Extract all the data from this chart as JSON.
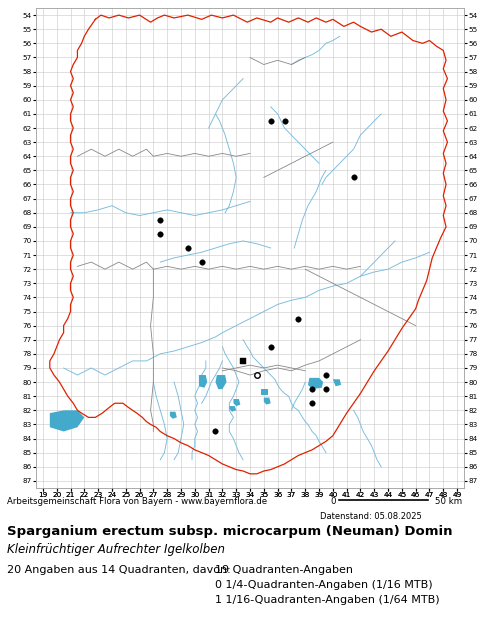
{
  "title": "Sparganium erectum subsp. microcarpum (Neuman) Domin",
  "subtitle": "Kleinfrüchtiger Aufrechter Igelkolben",
  "footer_left": "Arbeitsgemeinschaft Flora von Bayern - www.bayernflora.de",
  "date_text": "Datenstand: 05.08.2025",
  "stats_line1": "20 Angaben aus 14 Quadranten, davon:",
  "stats_right1": "19 Quadranten-Angaben",
  "stats_right2": "0 1/4-Quadranten-Angaben (1/16 MTB)",
  "stats_right3": "1 1/16-Quadranten-Angaben (1/64 MTB)",
  "x_min": 19,
  "x_max": 49,
  "y_min": 54,
  "y_max": 87,
  "grid_color": "#c8c8c8",
  "background_color": "#ffffff",
  "dots_filled": [
    [
      27,
      68
    ],
    [
      27,
      69
    ],
    [
      29,
      70
    ],
    [
      30,
      71
    ],
    [
      35,
      61
    ],
    [
      36,
      61
    ],
    [
      37,
      75
    ],
    [
      35,
      77
    ],
    [
      38,
      80
    ],
    [
      39,
      79
    ],
    [
      39,
      80
    ],
    [
      38,
      81
    ],
    [
      31,
      83
    ],
    [
      41,
      65
    ]
  ],
  "dots_square": [
    [
      33,
      78
    ]
  ],
  "dots_open": [
    [
      34,
      79
    ]
  ],
  "border_color_outer": "#dd2200",
  "border_color_inner": "#888888",
  "river_color": "#77bbdd",
  "lake_color": "#44aacc"
}
